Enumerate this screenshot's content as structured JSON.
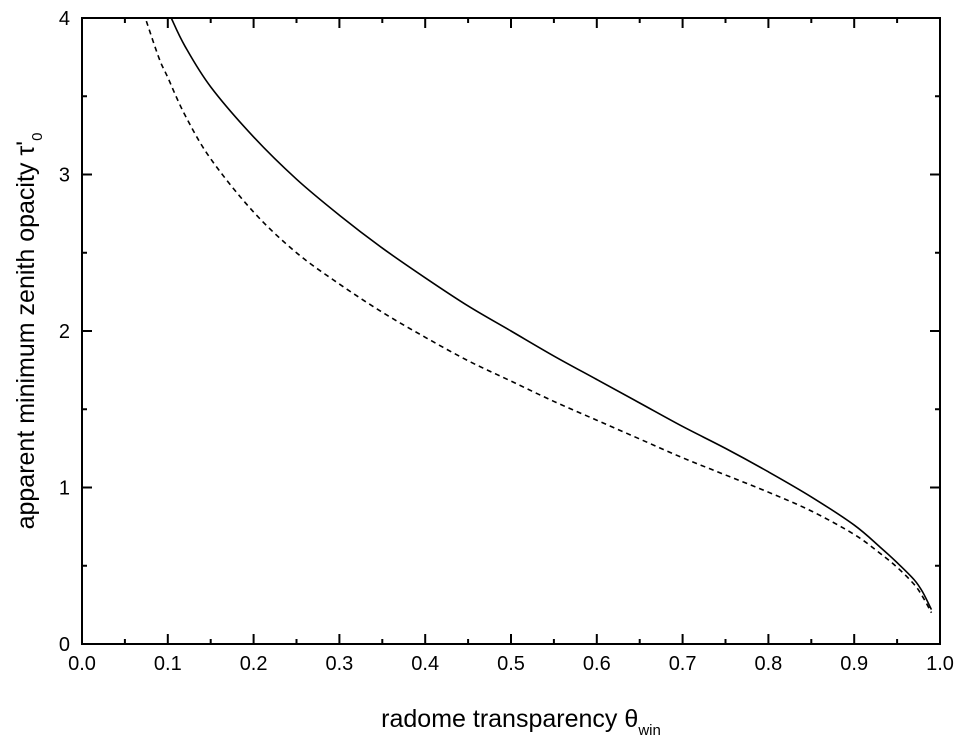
{
  "chart_data": {
    "type": "line",
    "xlabel": "radome transparency",
    "xlabel_symbol": "θ",
    "xlabel_subscript": "win",
    "ylabel": "apparent minimum zenith opacity",
    "ylabel_symbol": "τ'",
    "ylabel_subscript": "0",
    "xlim": [
      0.0,
      1.0
    ],
    "ylim": [
      0,
      4
    ],
    "x_ticks": [
      "0.0",
      "0.1",
      "0.2",
      "0.3",
      "0.4",
      "0.5",
      "0.6",
      "0.7",
      "0.8",
      "0.9",
      "1.0"
    ],
    "y_ticks": [
      "0",
      "1",
      "2",
      "3",
      "4"
    ],
    "grid": false,
    "series": [
      {
        "style": "solid",
        "color": "#000000",
        "x": [
          0.104,
          0.12,
          0.15,
          0.2,
          0.25,
          0.3,
          0.35,
          0.4,
          0.45,
          0.5,
          0.55,
          0.6,
          0.65,
          0.7,
          0.75,
          0.8,
          0.85,
          0.9,
          0.93,
          0.95,
          0.97,
          0.98,
          0.99
        ],
        "y": [
          4.0,
          3.82,
          3.56,
          3.24,
          2.97,
          2.74,
          2.53,
          2.34,
          2.16,
          2.0,
          1.84,
          1.69,
          1.54,
          1.39,
          1.25,
          1.1,
          0.94,
          0.76,
          0.62,
          0.52,
          0.41,
          0.33,
          0.22
        ]
      },
      {
        "style": "dashed",
        "color": "#000000",
        "x": [
          0.075,
          0.09,
          0.1,
          0.12,
          0.15,
          0.2,
          0.25,
          0.3,
          0.35,
          0.4,
          0.45,
          0.5,
          0.55,
          0.6,
          0.65,
          0.7,
          0.75,
          0.8,
          0.85,
          0.9,
          0.93,
          0.95,
          0.97,
          0.98,
          0.99
        ],
        "y": [
          3.98,
          3.74,
          3.62,
          3.38,
          3.1,
          2.76,
          2.5,
          2.3,
          2.12,
          1.96,
          1.81,
          1.68,
          1.55,
          1.43,
          1.31,
          1.19,
          1.08,
          0.97,
          0.85,
          0.7,
          0.58,
          0.49,
          0.38,
          0.3,
          0.2
        ]
      }
    ]
  }
}
